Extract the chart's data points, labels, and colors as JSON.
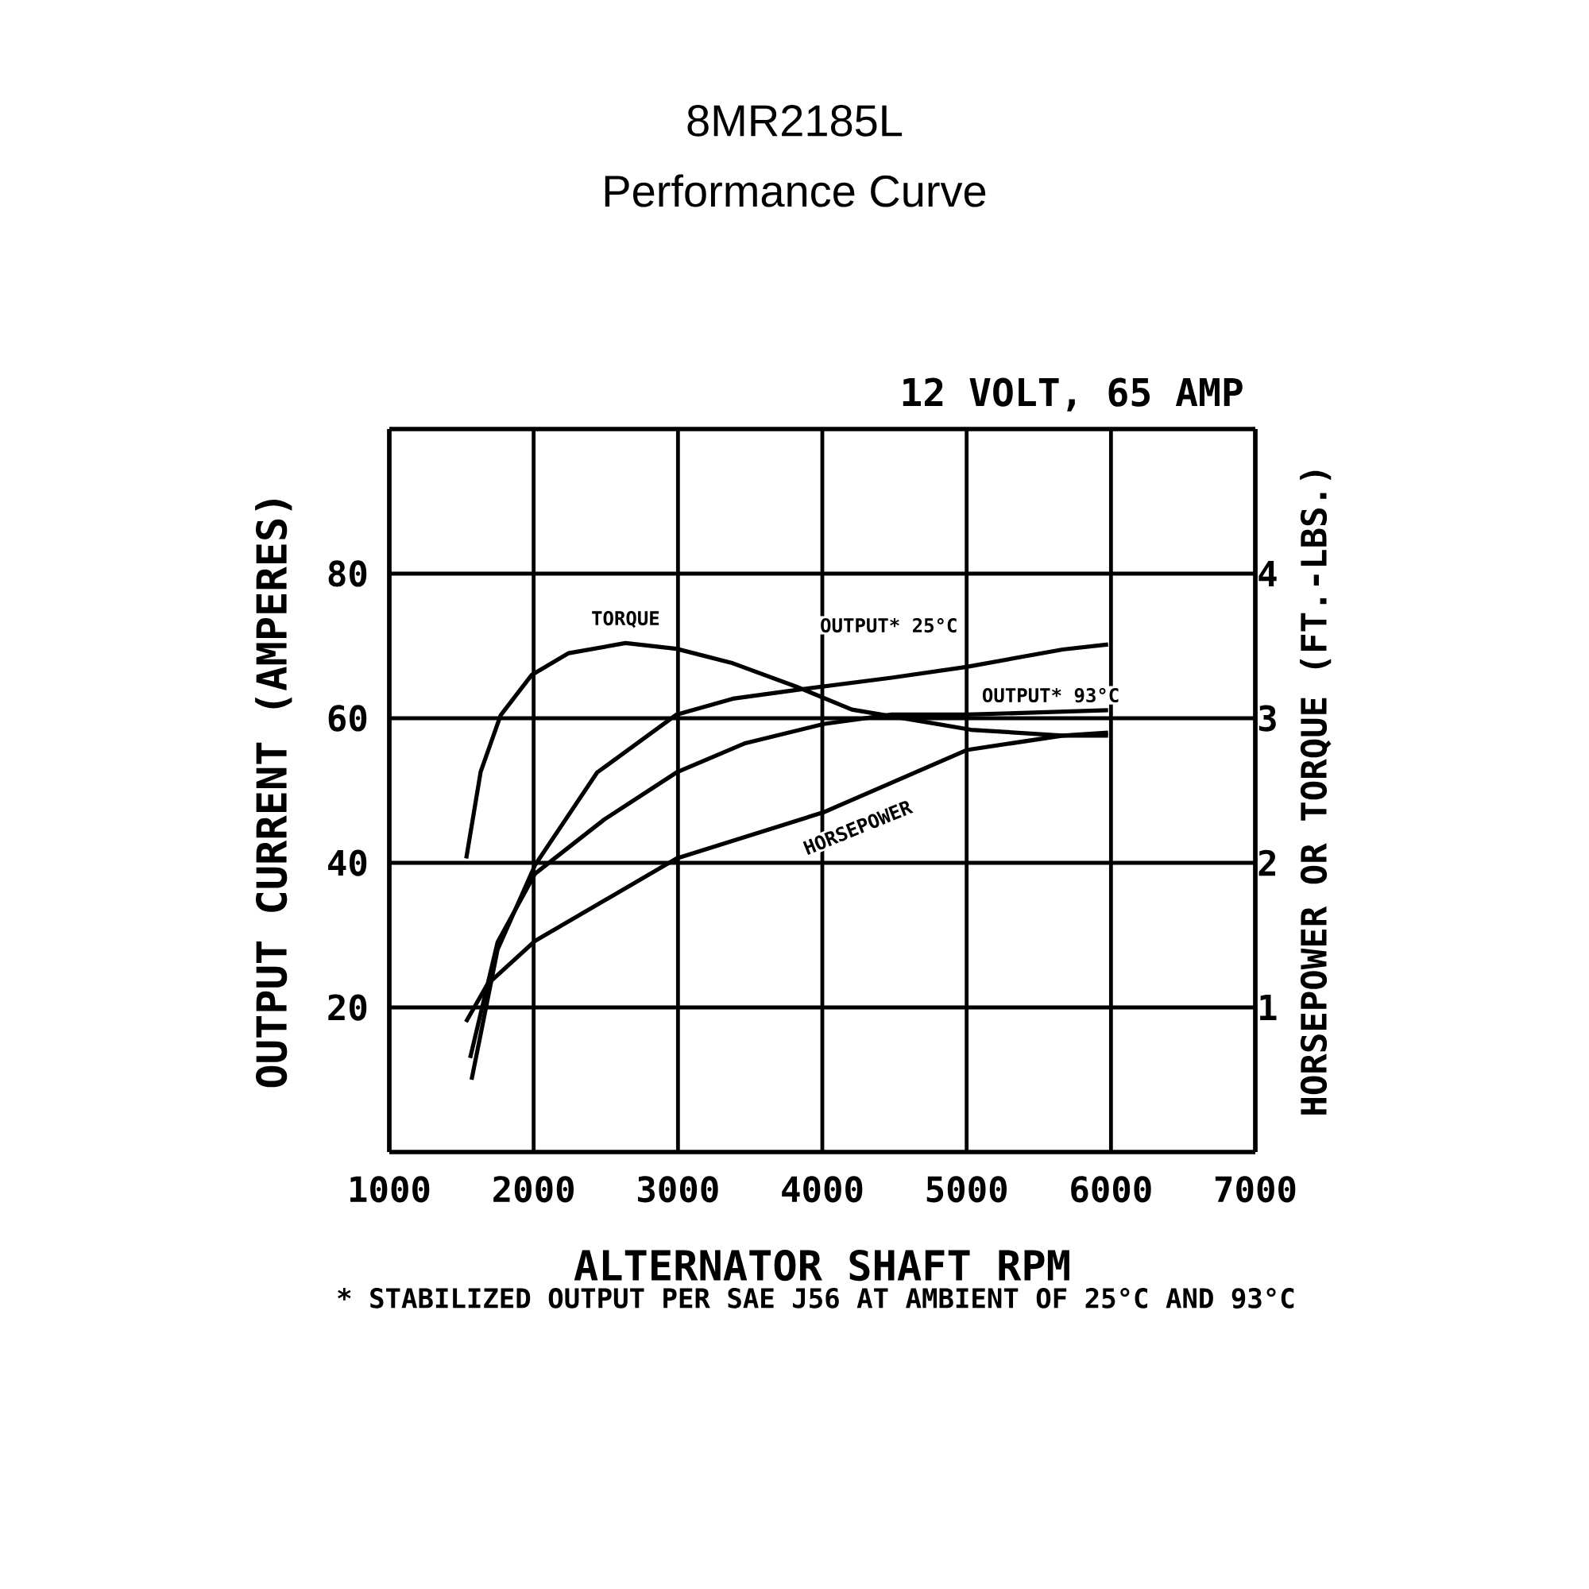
{
  "chart_data": {
    "type": "line",
    "title": "8MR2185L",
    "subtitle": "Performance Curve",
    "xlabel": "ALTERNATOR SHAFT RPM",
    "ylabel": "OUTPUT CURRENT (AMPERES)",
    "y2label": "HORSEPOWER OR TORQUE (FT.-LBS.)",
    "annotations": [
      "12 VOLT, 65 AMP",
      "* STABILIZED OUTPUT PER SAE J56 AT AMBIENT OF 25°C AND 93°C"
    ],
    "xlim": [
      1000,
      7000
    ],
    "xticks": [
      1000,
      2000,
      3000,
      4000,
      5000,
      6000,
      7000
    ],
    "ylim": [
      0,
      100
    ],
    "yticks": [
      20,
      40,
      60,
      80
    ],
    "y2lim": [
      0,
      5
    ],
    "y2ticks": [
      1,
      2,
      3,
      4
    ],
    "grid": true,
    "legend": false,
    "marker": "none",
    "line_style": "solid",
    "series": [
      {
        "name": "TORQUE",
        "axis": "y2",
        "color": "#000000",
        "x": [
          1533,
          1633,
          1771,
          1987,
          2243,
          2637,
          2990,
          3380,
          3816,
          4205,
          4678,
          5030,
          5665,
          5980
        ],
        "values": [
          2.03,
          2.63,
          3.02,
          3.3,
          3.45,
          3.52,
          3.48,
          3.38,
          3.22,
          3.06,
          2.98,
          2.92,
          2.88,
          2.88
        ]
      },
      {
        "name": "OUTPUT* 25°C",
        "color": "#000000",
        "x": [
          1570,
          1750,
          2010,
          2440,
          2990,
          3380,
          3852,
          4480,
          5000,
          5665,
          5980
        ],
        "values": [
          10,
          28,
          39.7,
          52.5,
          60.5,
          62.7,
          64,
          65.6,
          67.1,
          69.5,
          70.2
        ]
      },
      {
        "name": "OUTPUT* 93°C",
        "color": "#000000",
        "x": [
          1560,
          1750,
          2010,
          2490,
          2990,
          3460,
          4010,
          4480,
          5000,
          5980
        ],
        "values": [
          13,
          29,
          38.5,
          46,
          52.5,
          56.5,
          59.2,
          60.5,
          60.5,
          61.1
        ]
      },
      {
        "name": "HORSEPOWER",
        "axis": "y2",
        "color": "#000000",
        "x": [
          1531,
          1680,
          2010,
          2990,
          4010,
          5000,
          5665,
          5980
        ],
        "values": [
          0.9,
          1.16,
          1.46,
          2.03,
          2.35,
          2.78,
          2.88,
          2.9
        ]
      }
    ]
  }
}
